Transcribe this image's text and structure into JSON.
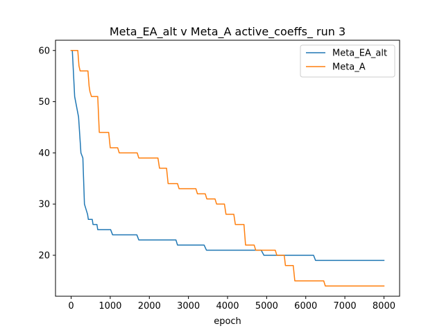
{
  "chart_data": {
    "type": "line",
    "title": "Meta_EA_alt v Meta_A active_coeffs_ run 3",
    "xlabel": "epoch",
    "ylabel": "",
    "xlim": [
      -400,
      8400
    ],
    "ylim": [
      12,
      62
    ],
    "xticks": [
      0,
      1000,
      2000,
      3000,
      4000,
      5000,
      6000,
      7000,
      8000
    ],
    "yticks": [
      20,
      30,
      40,
      50,
      60
    ],
    "grid": false,
    "legend_position": "top-right",
    "series": [
      {
        "name": "Meta_EA_alt",
        "color": "#1f77b4",
        "x": [
          0,
          30,
          90,
          190,
          250,
          300,
          340,
          380,
          420,
          440,
          540,
          560,
          660,
          680,
          1010,
          1060,
          1680,
          1730,
          2680,
          2720,
          3400,
          3460,
          4860,
          4930,
          5980,
          6010,
          6200,
          6250,
          8000
        ],
        "y": [
          60,
          60,
          51,
          47,
          40,
          39,
          30,
          29,
          28,
          27,
          27,
          26,
          26,
          25,
          25,
          24,
          24,
          23,
          23,
          22,
          22,
          21,
          21,
          20,
          20,
          20,
          20,
          19,
          19
        ]
      },
      {
        "name": "Meta_A",
        "color": "#ff7f0e",
        "x": [
          0,
          170,
          200,
          230,
          430,
          460,
          480,
          520,
          680,
          720,
          960,
          1000,
          1190,
          1230,
          1690,
          1730,
          2220,
          2260,
          2440,
          2480,
          2720,
          2760,
          3190,
          3230,
          3430,
          3470,
          3680,
          3720,
          3920,
          3960,
          4160,
          4200,
          4420,
          4460,
          4680,
          4720,
          5220,
          5260,
          5450,
          5480,
          5680,
          5720,
          6460,
          6500,
          8000
        ],
        "y": [
          60,
          60,
          57,
          56,
          56,
          53,
          52,
          51,
          51,
          44,
          44,
          41,
          41,
          40,
          40,
          39,
          39,
          37,
          37,
          34,
          34,
          33,
          33,
          32,
          32,
          31,
          31,
          30,
          30,
          28,
          28,
          26,
          26,
          22,
          22,
          21,
          21,
          20,
          20,
          18,
          18,
          15,
          15,
          14,
          14
        ]
      }
    ]
  }
}
